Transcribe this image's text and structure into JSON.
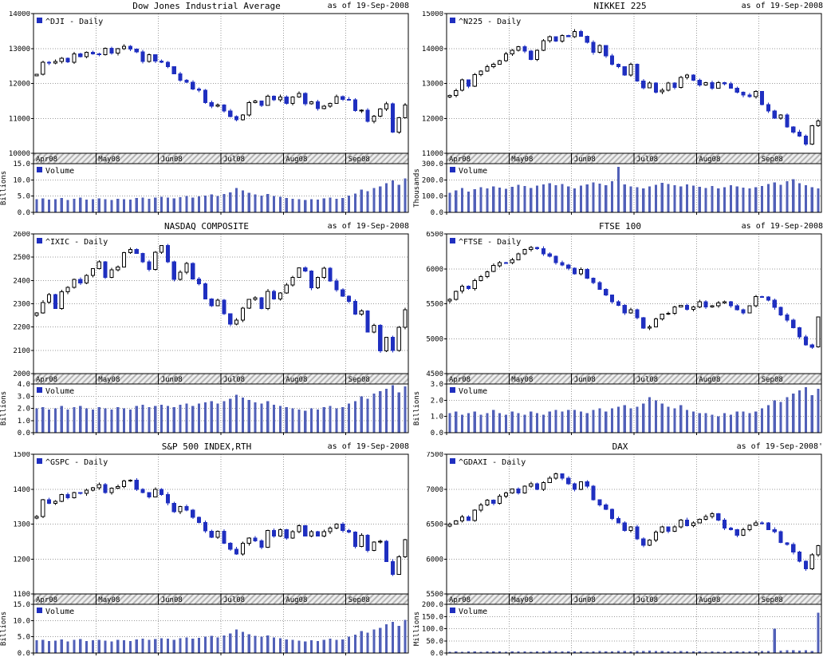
{
  "style": {
    "up_color": "#ffffff",
    "down_color": "#1f2fc0",
    "volume_color": "#5160b8",
    "grid_color": "#9b9b9b",
    "band_stripe": "#b5b5b5",
    "band_bg": "#efefef",
    "frame_color": "#000000"
  },
  "chart_data": [
    {
      "type": "candlestick",
      "title": "Dow Jones Industrial Average",
      "as_of": "as of 19-Sep-2008",
      "legend": "^DJI - Daily",
      "volume_legend": "Volume",
      "unit_label": "Billions",
      "x_tick_labels": [
        "Apr08",
        "May08",
        "Jun08",
        "Jul08",
        "Aug08",
        "Sep08"
      ],
      "month_start_indices": [
        0,
        10,
        20,
        30,
        40,
        50
      ],
      "price_axis": {
        "min": 10000,
        "max": 14000,
        "ticks": [
          10000,
          11000,
          12000,
          13000,
          14000
        ],
        "tick_labels": [
          "10000",
          "11000",
          "12000",
          "13000",
          "14000"
        ]
      },
      "volume_axis": {
        "min": 0,
        "max": 15,
        "ticks": [
          0,
          5,
          10,
          15
        ],
        "tick_labels": [
          "0.0",
          "5.0",
          "10.0",
          "15.0"
        ]
      },
      "closes": [
        12263,
        12608,
        12581,
        12626,
        12719,
        12612,
        12849,
        12763,
        12891,
        12848,
        12820,
        13010,
        12866,
        12992,
        13058,
        12987,
        12898,
        12626,
        12818,
        12638,
        12604,
        12480,
        12280,
        12091,
        12029,
        11842,
        11811,
        11453,
        11346,
        11384,
        11215,
        11055,
        10962,
        11100,
        11447,
        11496,
        11370,
        11632,
        11532,
        11616,
        11432,
        11616,
        11715,
        11417,
        11480,
        11276,
        11350,
        11434,
        11628,
        11544,
        11532,
        11221,
        11230,
        10918,
        11059,
        11269,
        11422,
        10610,
        11019,
        11388
      ],
      "volumes": [
        4.1,
        4.3,
        3.9,
        4.0,
        4.4,
        3.8,
        4.2,
        4.5,
        3.9,
        4.1,
        4.3,
        4.0,
        3.8,
        4.2,
        4.1,
        3.9,
        4.4,
        4.6,
        4.2,
        4.5,
        4.8,
        4.6,
        4.3,
        4.7,
        5.0,
        4.6,
        4.9,
        5.2,
        5.5,
        5.0,
        5.6,
        6.2,
        7.5,
        6.8,
        6.0,
        5.5,
        5.2,
        5.6,
        5.0,
        4.8,
        4.4,
        4.2,
        4.0,
        3.8,
        4.1,
        3.9,
        4.3,
        4.6,
        4.2,
        4.4,
        5.2,
        5.8,
        7.0,
        6.5,
        7.5,
        8.0,
        9.0,
        9.8,
        8.5,
        10.5
      ]
    },
    {
      "type": "candlestick",
      "title": "NIKKEI 225",
      "as_of": "as of 19-Sep-2008",
      "legend": "^N225 - Daily",
      "volume_legend": "Volume",
      "unit_label": "Thousands",
      "x_tick_labels": [
        "Apr08",
        "May08",
        "Jun08",
        "Jul08",
        "Aug08",
        "Sep08"
      ],
      "month_start_indices": [
        0,
        10,
        20,
        30,
        40,
        50
      ],
      "price_axis": {
        "min": 11000,
        "max": 15000,
        "ticks": [
          11000,
          12000,
          13000,
          14000,
          15000
        ],
        "tick_labels": [
          "11000",
          "12000",
          "13000",
          "14000",
          "15000"
        ]
      },
      "volume_axis": {
        "min": 0,
        "max": 300,
        "ticks": [
          0,
          100,
          200,
          300
        ],
        "tick_labels": [
          "0.0",
          "100.0",
          "200.0",
          "300.0"
        ]
      },
      "closes": [
        12656,
        12800,
        13100,
        12917,
        13250,
        13350,
        13476,
        13547,
        13650,
        13850,
        13943,
        14049,
        13924,
        13690,
        13953,
        14219,
        14338,
        14209,
        14366,
        14338,
        14489,
        14354,
        14181,
        13888,
        14084,
        13790,
        13544,
        13481,
        13237,
        13544,
        13065,
        12876,
        13010,
        12754,
        12803,
        13010,
        12887,
        13168,
        13242,
        13094,
        12956,
        13019,
        12865,
        13023,
        12989,
        12865,
        12753,
        12666,
        12624,
        12768,
        12400,
        12214,
        12008,
        12102,
        11749,
        11609,
        11490,
        11260,
        11790,
        11921
      ],
      "volumes": [
        120,
        135,
        150,
        128,
        142,
        156,
        148,
        160,
        152,
        144,
        158,
        170,
        162,
        150,
        165,
        172,
        180,
        168,
        175,
        160,
        148,
        165,
        172,
        185,
        178,
        168,
        192,
        280,
        172,
        160,
        155,
        148,
        160,
        170,
        182,
        175,
        168,
        160,
        172,
        165,
        158,
        150,
        162,
        148,
        155,
        168,
        160,
        152,
        148,
        156,
        162,
        175,
        185,
        170,
        192,
        205,
        180,
        168,
        155,
        148
      ]
    },
    {
      "type": "candlestick",
      "title": "NASDAQ COMPOSITE",
      "as_of": "as of 19-Sep-2008",
      "legend": "^IXIC - Daily",
      "volume_legend": "Volume",
      "unit_label": "Billions",
      "x_tick_labels": [
        "Apr08",
        "May08",
        "Jun08",
        "Jul08",
        "Aug08",
        "Sep08"
      ],
      "month_start_indices": [
        0,
        10,
        20,
        30,
        40,
        50
      ],
      "price_axis": {
        "min": 2000,
        "max": 2600,
        "ticks": [
          2000,
          2100,
          2200,
          2300,
          2400,
          2500,
          2600
        ],
        "tick_labels": [
          "2000",
          "2100",
          "2200",
          "2300",
          "2400",
          "2500",
          "2600"
        ]
      },
      "volume_axis": {
        "min": 0,
        "max": 4,
        "ticks": [
          0,
          1,
          2,
          3,
          4
        ],
        "tick_labels": [
          "0.0",
          "1.0",
          "2.0",
          "3.0",
          "4.0"
        ]
      },
      "closes": [
        2260,
        2306,
        2340,
        2280,
        2351,
        2370,
        2405,
        2389,
        2422,
        2451,
        2480,
        2413,
        2445,
        2458,
        2520,
        2533,
        2516,
        2480,
        2448,
        2522,
        2550,
        2480,
        2404,
        2435,
        2474,
        2406,
        2385,
        2321,
        2292,
        2315,
        2257,
        2213,
        2230,
        2282,
        2319,
        2325,
        2280,
        2354,
        2320,
        2346,
        2380,
        2414,
        2454,
        2440,
        2368,
        2414,
        2453,
        2398,
        2360,
        2333,
        2310,
        2255,
        2270,
        2179,
        2207,
        2098,
        2156,
        2099,
        2199,
        2274
      ],
      "volumes": [
        2.0,
        2.1,
        1.9,
        2.0,
        2.2,
        1.9,
        2.1,
        2.2,
        2.0,
        1.9,
        2.1,
        2.0,
        1.9,
        2.1,
        2.0,
        1.9,
        2.2,
        2.3,
        2.1,
        2.2,
        2.3,
        2.2,
        2.1,
        2.3,
        2.4,
        2.2,
        2.4,
        2.5,
        2.6,
        2.4,
        2.6,
        2.8,
        3.1,
        2.9,
        2.7,
        2.5,
        2.4,
        2.6,
        2.3,
        2.2,
        2.1,
        2.0,
        1.9,
        1.8,
        2.0,
        1.9,
        2.1,
        2.2,
        2.0,
        2.1,
        2.4,
        2.6,
        3.0,
        2.8,
        3.2,
        3.4,
        3.6,
        3.9,
        3.3,
        3.8
      ]
    },
    {
      "type": "candlestick",
      "title": "FTSE 100",
      "as_of": "as of 19-Sep-2008",
      "legend": "^FTSE - Daily",
      "volume_legend": "Volume",
      "unit_label": "Billions",
      "x_tick_labels": [
        "Apr08",
        "May08",
        "Jun08",
        "Jul08",
        "Aug08",
        "Sep08"
      ],
      "month_start_indices": [
        0,
        10,
        20,
        30,
        40,
        50
      ],
      "price_axis": {
        "min": 4500,
        "max": 6500,
        "ticks": [
          4500,
          5000,
          5500,
          6000,
          6500
        ],
        "tick_labels": [
          "4500",
          "5000",
          "5500",
          "6000",
          "6500"
        ]
      },
      "volume_axis": {
        "min": 0,
        "max": 3,
        "ticks": [
          0,
          1,
          2,
          3
        ],
        "tick_labels": [
          "0.0",
          "1.0",
          "2.0",
          "3.0"
        ]
      },
      "closes": [
        5562,
        5680,
        5750,
        5717,
        5831,
        5890,
        5960,
        6046,
        6090,
        6087,
        6130,
        6215,
        6280,
        6304,
        6290,
        6216,
        6180,
        6087,
        6053,
        6007,
        5930,
        5990,
        5866,
        5803,
        5705,
        5625,
        5530,
        5480,
        5370,
        5413,
        5302,
        5150,
        5171,
        5282,
        5350,
        5362,
        5455,
        5478,
        5420,
        5455,
        5528,
        5455,
        5471,
        5510,
        5528,
        5470,
        5415,
        5370,
        5470,
        5601,
        5600,
        5550,
        5446,
        5340,
        5268,
        5160,
        5025,
        4912,
        4880,
        5311
      ],
      "volumes": [
        1.2,
        1.3,
        1.1,
        1.2,
        1.3,
        1.1,
        1.2,
        1.4,
        1.2,
        1.1,
        1.3,
        1.2,
        1.1,
        1.3,
        1.2,
        1.1,
        1.3,
        1.4,
        1.3,
        1.4,
        1.4,
        1.3,
        1.2,
        1.4,
        1.5,
        1.3,
        1.5,
        1.6,
        1.7,
        1.5,
        1.6,
        1.8,
        2.2,
        2.0,
        1.8,
        1.6,
        1.5,
        1.7,
        1.4,
        1.3,
        1.2,
        1.2,
        1.1,
        1.0,
        1.2,
        1.1,
        1.3,
        1.3,
        1.2,
        1.3,
        1.5,
        1.7,
        2.0,
        1.9,
        2.2,
        2.4,
        2.6,
        2.8,
        2.3,
        2.7
      ]
    },
    {
      "type": "candlestick",
      "title": "S&P 500 INDEX,RTH",
      "as_of": "as of 19-Sep-2008",
      "legend": "^GSPC - Daily",
      "volume_legend": "Volume",
      "unit_label": "Billions",
      "x_tick_labels": [
        "Apr08",
        "May08",
        "Jun08",
        "Jul08",
        "Aug08",
        "Sep08"
      ],
      "month_start_indices": [
        0,
        10,
        20,
        30,
        40,
        50
      ],
      "price_axis": {
        "min": 1100,
        "max": 1500,
        "ticks": [
          1100,
          1200,
          1300,
          1400,
          1500
        ],
        "tick_labels": [
          "1100",
          "1200",
          "1300",
          "1400",
          "1500"
        ]
      },
      "volume_axis": {
        "min": 0,
        "max": 15,
        "ticks": [
          0,
          5,
          10,
          15
        ],
        "tick_labels": [
          "0.0",
          "5.0",
          "10.0",
          "15.0"
        ]
      },
      "closes": [
        1322,
        1370,
        1360,
        1365,
        1385,
        1375,
        1390,
        1388,
        1397,
        1404,
        1413,
        1390,
        1403,
        1408,
        1423,
        1426,
        1400,
        1390,
        1378,
        1400,
        1385,
        1360,
        1335,
        1350,
        1340,
        1320,
        1305,
        1280,
        1262,
        1280,
        1245,
        1228,
        1214,
        1245,
        1260,
        1252,
        1234,
        1282,
        1266,
        1284,
        1260,
        1278,
        1296,
        1266,
        1278,
        1266,
        1278,
        1289,
        1300,
        1282,
        1277,
        1236,
        1268,
        1224,
        1249,
        1251,
        1193,
        1156,
        1206,
        1255
      ],
      "volumes": [
        3.9,
        4.1,
        3.7,
        3.8,
        4.2,
        3.6,
        4.0,
        4.3,
        3.7,
        3.9,
        4.1,
        3.8,
        3.6,
        4.0,
        3.9,
        3.7,
        4.2,
        4.4,
        4.0,
        4.3,
        4.6,
        4.4,
        4.1,
        4.5,
        4.8,
        4.4,
        4.7,
        5.0,
        5.3,
        4.8,
        5.4,
        6.0,
        7.2,
        6.5,
        5.8,
        5.3,
        5.0,
        5.4,
        4.8,
        4.6,
        4.2,
        4.0,
        3.8,
        3.6,
        3.9,
        3.7,
        4.1,
        4.4,
        4.0,
        4.2,
        5.0,
        5.6,
        6.8,
        6.3,
        7.3,
        7.8,
        8.8,
        9.6,
        8.3,
        10.2
      ]
    },
    {
      "type": "candlestick",
      "title": "DAX",
      "as_of": "as of 19-Sep-2008'",
      "legend": "^GDAXI - Daily",
      "volume_legend": "Volume",
      "unit_label": "Millions",
      "x_tick_labels": [
        "Apr08",
        "May08",
        "Jun08",
        "Jul08",
        "Aug08",
        "Sep08"
      ],
      "month_start_indices": [
        0,
        10,
        20,
        30,
        40,
        50
      ],
      "price_axis": {
        "min": 5500,
        "max": 7500,
        "ticks": [
          5500,
          6000,
          6500,
          7000,
          7500
        ],
        "tick_labels": [
          "5500",
          "6000",
          "6500",
          "7000",
          "7500"
        ]
      },
      "volume_axis": {
        "min": 0,
        "max": 200,
        "ticks": [
          0,
          50,
          100,
          150,
          200
        ],
        "tick_labels": [
          "0.0",
          "50.0",
          "100.0",
          "150.0",
          "200.0"
        ]
      },
      "closes": [
        6500,
        6545,
        6603,
        6550,
        6700,
        6776,
        6843,
        6795,
        6900,
        6948,
        7003,
        6945,
        7042,
        7075,
        6995,
        7096,
        7155,
        7218,
        7160,
        7075,
        6997,
        7105,
        7042,
        6850,
        6777,
        6710,
        6578,
        6520,
        6410,
        6460,
        6290,
        6200,
        6272,
        6385,
        6460,
        6395,
        6460,
        6560,
        6475,
        6520,
        6570,
        6610,
        6650,
        6560,
        6445,
        6422,
        6340,
        6422,
        6482,
        6520,
        6518,
        6422,
        6390,
        6234,
        6210,
        6098,
        5970,
        5860,
        6060,
        6189
      ],
      "volumes": [
        5,
        6,
        5,
        6,
        7,
        5,
        6,
        7,
        6,
        5,
        6,
        7,
        6,
        5,
        7,
        6,
        8,
        7,
        6,
        7,
        7,
        6,
        5,
        7,
        8,
        6,
        7,
        8,
        9,
        7,
        8,
        9,
        10,
        9,
        8,
        7,
        7,
        8,
        7,
        6,
        6,
        5,
        6,
        5,
        6,
        6,
        7,
        7,
        6,
        7,
        8,
        9,
        100,
        10,
        11,
        12,
        10,
        11,
        9,
        165
      ]
    }
  ]
}
